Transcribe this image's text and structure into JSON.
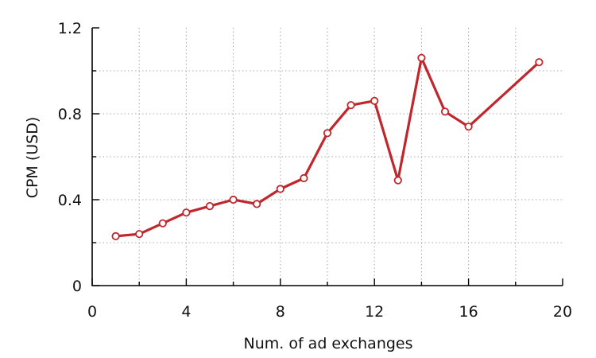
{
  "chart_data": {
    "type": "line",
    "title": "",
    "xlabel": "Num. of ad exchanges",
    "ylabel": "CPM (USD)",
    "xlim": [
      0,
      20
    ],
    "ylim": [
      0,
      1.2
    ],
    "xticks": [
      0,
      4,
      8,
      12,
      16,
      20
    ],
    "yticks": [
      0,
      0.4,
      0.8,
      1.2
    ],
    "xtick_labels": [
      "0",
      "4",
      "8",
      "12",
      "16",
      "20"
    ],
    "ytick_labels": [
      "0",
      "0.4",
      "0.8",
      "1.2"
    ],
    "grid": true,
    "legend": "none",
    "series": [
      {
        "color": "#c0272d",
        "marker": "open-circle",
        "x": [
          1,
          2,
          3,
          4,
          5,
          6,
          7,
          8,
          9,
          10,
          11,
          12,
          13,
          14,
          15,
          16,
          19
        ],
        "y": [
          0.23,
          0.24,
          0.29,
          0.34,
          0.37,
          0.4,
          0.38,
          0.45,
          0.5,
          0.71,
          0.84,
          0.86,
          0.49,
          1.06,
          0.81,
          0.74,
          1.04
        ]
      }
    ]
  }
}
